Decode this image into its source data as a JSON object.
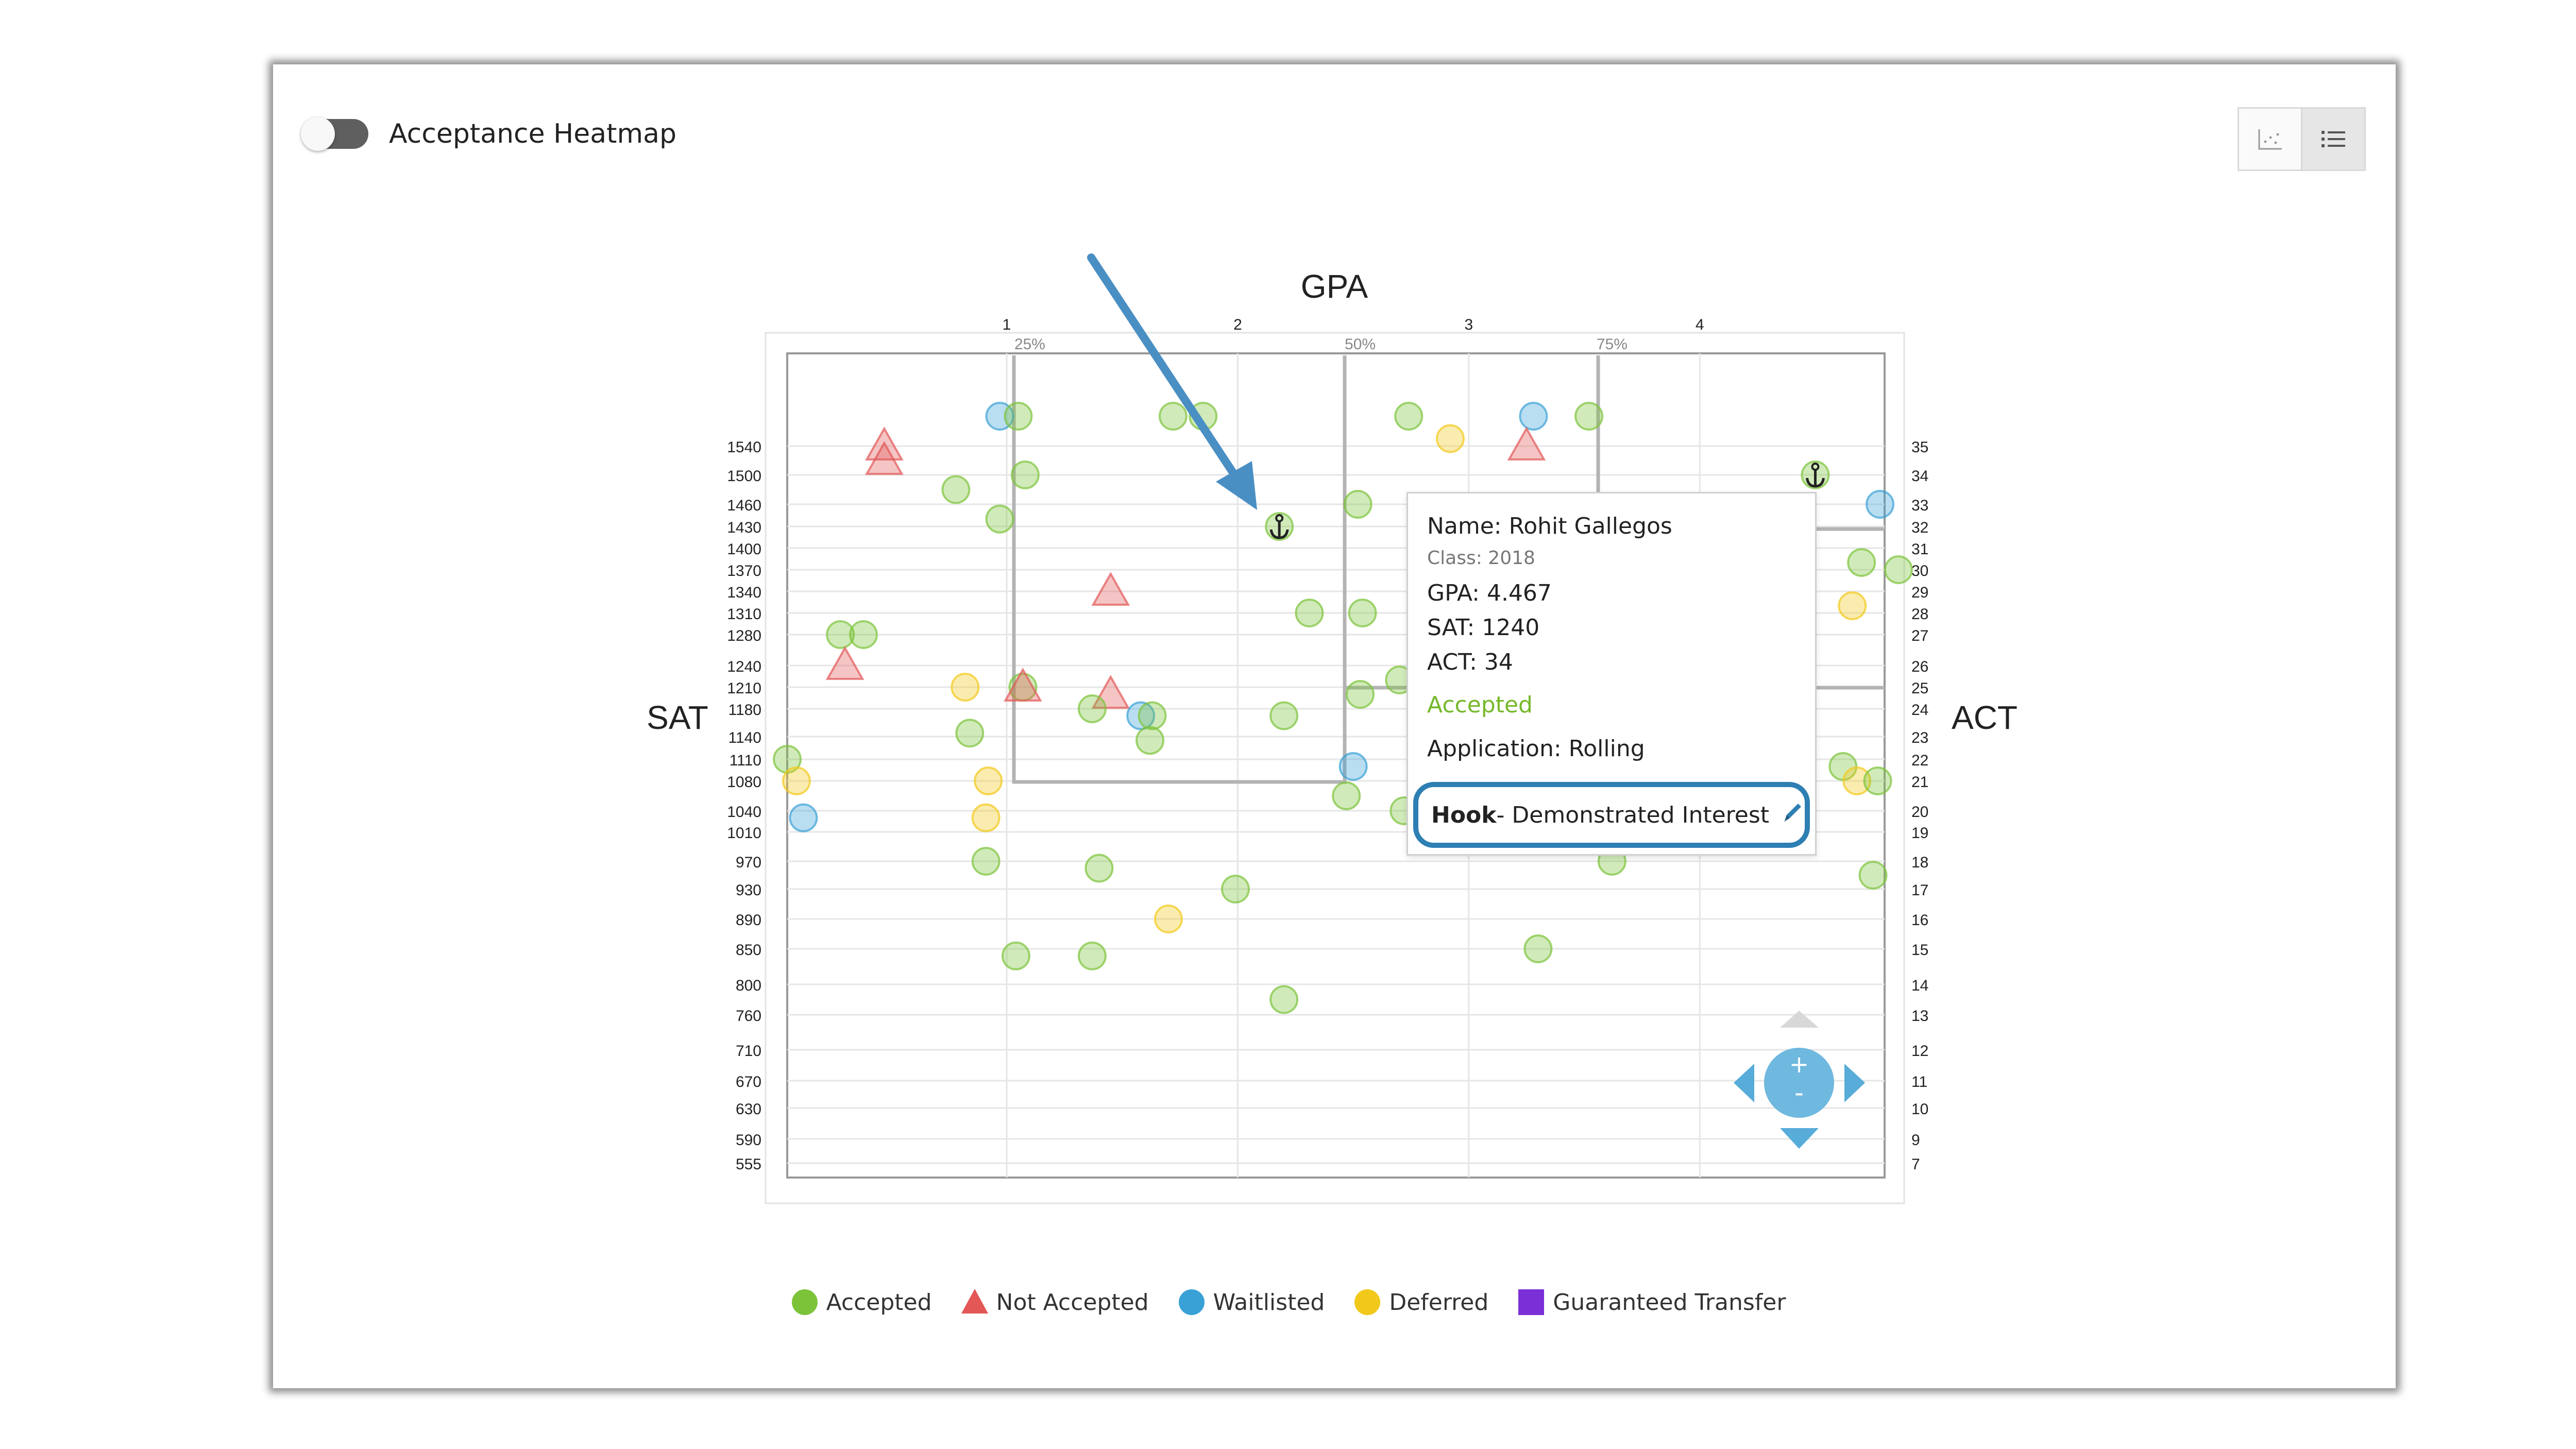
{
  "heatmap_toggle": {
    "label": "Acceptance Heatmap",
    "on": false
  },
  "view_buttons": [
    {
      "name": "scatter-view",
      "icon": "scatter-chart-icon",
      "active": false
    },
    {
      "name": "list-view",
      "icon": "list-icon",
      "active": true
    }
  ],
  "tooltip": {
    "name": "Name: Rohit Gallegos",
    "class": "Class: 2018",
    "gpa": "GPA: 4.467",
    "sat": "SAT: 1240",
    "act": "ACT: 34",
    "status": "Accepted",
    "application": "Application: Rolling",
    "hook_label": "Hook",
    "hook_value": " - Demonstrated Interest"
  },
  "colors": {
    "accepted": "#7cc33a",
    "not_accepted": "#e35757",
    "waitlisted": "#3aa1d6",
    "deferred": "#f2c91a",
    "guaranteed_transfer": "#7b2fd6",
    "arrow": "#4a8fc4"
  },
  "chart_data": {
    "type": "scatter",
    "title": "GPA",
    "xlabel": "GPA",
    "ylabel_left": "SAT",
    "ylabel_right": "ACT",
    "xlim": [
      0.05,
      4.8
    ],
    "x_ticks": [
      1,
      2,
      3,
      4
    ],
    "percentile_labels": [
      {
        "label": "25%",
        "x": 1.1
      },
      {
        "label": "50%",
        "x": 2.53
      },
      {
        "label": "75%",
        "x": 3.62
      }
    ],
    "sat_ticks": [
      "1540",
      "1500",
      "1460",
      "1430",
      "1400",
      "1370",
      "1340",
      "1310",
      "1280",
      "1240",
      "1210",
      "1180",
      "1140",
      "1110",
      "1080",
      "1040",
      "1010",
      "970",
      "930",
      "890",
      "850",
      "800",
      "760",
      "710",
      "670",
      "630",
      "590",
      "555"
    ],
    "act_ticks": [
      "35",
      "34",
      "33",
      "32",
      "31",
      "30",
      "29",
      "28",
      "27",
      "26",
      "25",
      "24",
      "23",
      "22",
      "21",
      "20",
      "19",
      "18",
      "17",
      "16",
      "15",
      "14",
      "13",
      "12",
      "11",
      "10",
      "9",
      "7"
    ],
    "legend": [
      {
        "label": "Accepted",
        "shape": "circle",
        "color": "#7cc33a"
      },
      {
        "label": "Not Accepted",
        "shape": "triangle",
        "color": "#e35757"
      },
      {
        "label": "Waitlisted",
        "shape": "circle",
        "color": "#3aa1d6"
      },
      {
        "label": "Deferred",
        "shape": "circle",
        "color": "#f2c91a"
      },
      {
        "label": "Guaranteed Transfer",
        "shape": "square",
        "color": "#7b2fd6"
      }
    ],
    "points": [
      {
        "x": 0.97,
        "y": 1580,
        "s": "w"
      },
      {
        "x": 1.05,
        "y": 1580,
        "s": "a"
      },
      {
        "x": 1.72,
        "y": 1580,
        "s": "a"
      },
      {
        "x": 1.85,
        "y": 1580,
        "s": "a"
      },
      {
        "x": 2.74,
        "y": 1580,
        "s": "a"
      },
      {
        "x": 2.92,
        "y": 1550,
        "s": "d"
      },
      {
        "x": 3.28,
        "y": 1580,
        "s": "w"
      },
      {
        "x": 3.52,
        "y": 1580,
        "s": "a"
      },
      {
        "x": 0.47,
        "y": 1540,
        "s": "n"
      },
      {
        "x": 0.47,
        "y": 1520,
        "s": "n"
      },
      {
        "x": 3.25,
        "y": 1540,
        "s": "n"
      },
      {
        "x": 0.78,
        "y": 1480,
        "s": "a"
      },
      {
        "x": 1.08,
        "y": 1500,
        "s": "a"
      },
      {
        "x": 0.97,
        "y": 1440,
        "s": "a"
      },
      {
        "x": 2.52,
        "y": 1460,
        "s": "a"
      },
      {
        "x": 2.18,
        "y": 1430,
        "s": "a",
        "anchor": true
      },
      {
        "x": 4.5,
        "y": 1500,
        "s": "a",
        "anchor": true
      },
      {
        "x": 4.78,
        "y": 1460,
        "s": "w"
      },
      {
        "x": 4.7,
        "y": 1380,
        "s": "a"
      },
      {
        "x": 4.86,
        "y": 1370,
        "s": "a"
      },
      {
        "x": 4.66,
        "y": 1320,
        "s": "d"
      },
      {
        "x": 1.45,
        "y": 1340,
        "s": "n"
      },
      {
        "x": 2.31,
        "y": 1310,
        "s": "a"
      },
      {
        "x": 2.54,
        "y": 1310,
        "s": "a"
      },
      {
        "x": 0.28,
        "y": 1280,
        "s": "a"
      },
      {
        "x": 0.38,
        "y": 1280,
        "s": "a"
      },
      {
        "x": 0.3,
        "y": 1240,
        "s": "n"
      },
      {
        "x": 0.82,
        "y": 1210,
        "s": "d"
      },
      {
        "x": 1.07,
        "y": 1210,
        "s": "a"
      },
      {
        "x": 1.07,
        "y": 1210,
        "s": "n"
      },
      {
        "x": 1.45,
        "y": 1200,
        "s": "n"
      },
      {
        "x": 1.37,
        "y": 1180,
        "s": "a"
      },
      {
        "x": 1.58,
        "y": 1170,
        "s": "w"
      },
      {
        "x": 1.63,
        "y": 1170,
        "s": "a"
      },
      {
        "x": 2.2,
        "y": 1170,
        "s": "a"
      },
      {
        "x": 2.7,
        "y": 1220,
        "s": "a"
      },
      {
        "x": 2.53,
        "y": 1200,
        "s": "a"
      },
      {
        "x": 0.84,
        "y": 1145,
        "s": "a"
      },
      {
        "x": 1.62,
        "y": 1135,
        "s": "a"
      },
      {
        "x": 0.05,
        "y": 1110,
        "s": "a"
      },
      {
        "x": 0.09,
        "y": 1080,
        "s": "d"
      },
      {
        "x": 0.92,
        "y": 1080,
        "s": "d"
      },
      {
        "x": 2.5,
        "y": 1100,
        "s": "w"
      },
      {
        "x": 4.62,
        "y": 1100,
        "s": "a"
      },
      {
        "x": 4.68,
        "y": 1080,
        "s": "d"
      },
      {
        "x": 4.77,
        "y": 1080,
        "s": "a"
      },
      {
        "x": 0.12,
        "y": 1030,
        "s": "w"
      },
      {
        "x": 0.91,
        "y": 1030,
        "s": "d"
      },
      {
        "x": 2.47,
        "y": 1060,
        "s": "a"
      },
      {
        "x": 2.72,
        "y": 1040,
        "s": "a"
      },
      {
        "x": 0.91,
        "y": 970,
        "s": "a"
      },
      {
        "x": 1.4,
        "y": 960,
        "s": "a"
      },
      {
        "x": 3.62,
        "y": 970,
        "s": "a"
      },
      {
        "x": 4.75,
        "y": 950,
        "s": "a"
      },
      {
        "x": 1.99,
        "y": 930,
        "s": "a"
      },
      {
        "x": 1.7,
        "y": 890,
        "s": "d"
      },
      {
        "x": 1.04,
        "y": 840,
        "s": "a"
      },
      {
        "x": 1.37,
        "y": 840,
        "s": "a"
      },
      {
        "x": 3.3,
        "y": 850,
        "s": "a"
      },
      {
        "x": 2.2,
        "y": 780,
        "s": "a"
      }
    ]
  }
}
